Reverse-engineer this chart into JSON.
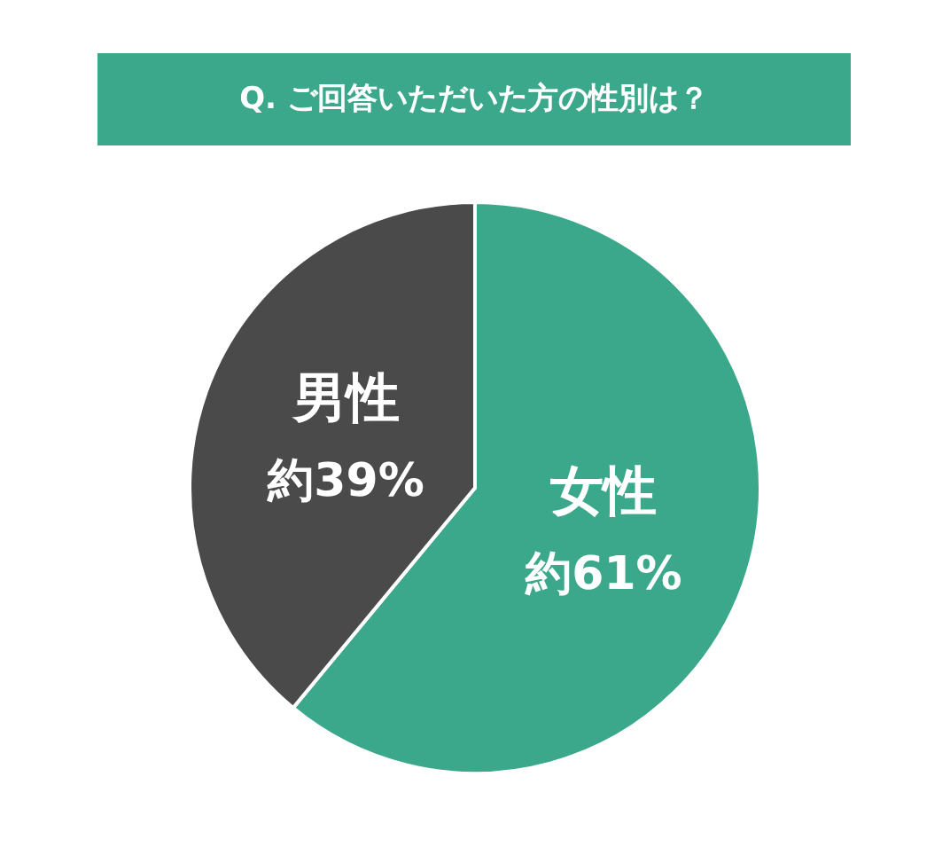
{
  "chart_data": {
    "type": "pie",
    "title": "Q. ご回答いただいた方の性別は？",
    "categories": [
      "女性",
      "男性"
    ],
    "values": [
      61,
      39
    ],
    "value_labels": [
      "約61%",
      "約39%"
    ],
    "colors": [
      "#3ba88b",
      "#4a4a4a"
    ],
    "legend": false
  }
}
